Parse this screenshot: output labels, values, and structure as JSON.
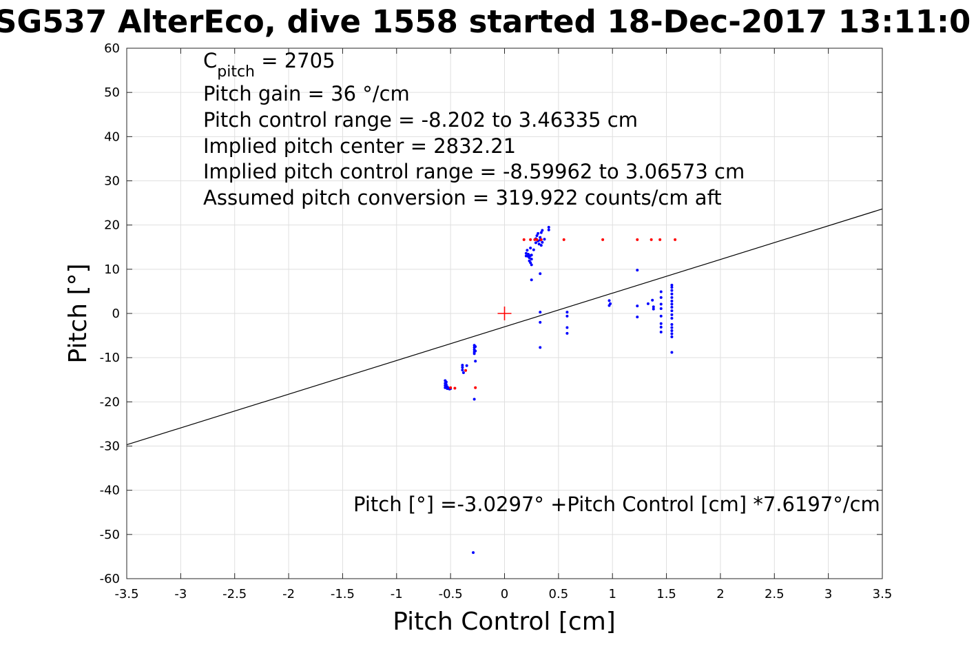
{
  "chart_data": {
    "type": "scatter",
    "title": "SG537 AlterEco, dive 1558 started 18-Dec-2017 13:11:0",
    "xlabel": "Pitch Control [cm]",
    "ylabel": "Pitch [°]",
    "xlim": [
      -3.5,
      3.5
    ],
    "ylim": [
      -60,
      60
    ],
    "xticks": [
      -3.5,
      -3,
      -2.5,
      -2,
      -1.5,
      -1,
      -0.5,
      0,
      0.5,
      1,
      1.5,
      2,
      2.5,
      3,
      3.5
    ],
    "xtick_labels": [
      "-3.5",
      "-3",
      "-2.5",
      "-2",
      "-1.5",
      "-1",
      "-0.5",
      "0",
      "0.5",
      "1",
      "1.5",
      "2",
      "2.5",
      "3",
      "3.5"
    ],
    "yticks": [
      -60,
      -50,
      -40,
      -30,
      -20,
      -10,
      0,
      10,
      20,
      30,
      40,
      50,
      60
    ],
    "ytick_labels": [
      "-60",
      "-50",
      "-40",
      "-30",
      "-20",
      "-10",
      "0",
      "10",
      "20",
      "30",
      "40",
      "50",
      "60"
    ],
    "grid": true,
    "annotations": {
      "c_pitch_main": "C",
      "c_pitch_sub": "pitch",
      "c_pitch_value": " = 2705",
      "pitch_gain": "Pitch gain = 36 °/cm",
      "control_range": "Pitch control range = -8.202 to 3.46335 cm",
      "implied_center": "Implied pitch center = 2832.21",
      "implied_range": "Implied pitch control range = -8.59962 to 3.06573 cm",
      "conversion": "Assumed pitch conversion = 319.922 counts/cm aft",
      "fit_equation": "Pitch [°] =-3.0297° +Pitch Control [cm] *7.6197°/cm"
    },
    "fit_line": {
      "intercept": -3.0297,
      "slope": 7.6197,
      "color": "#000000"
    },
    "center_marker": {
      "x": 0,
      "y": 0,
      "color": "#ff0000"
    },
    "series": [
      {
        "color": "#0000ff",
        "points": [
          [
            -0.55,
            -15.2
          ],
          [
            -0.55,
            -15.8
          ],
          [
            -0.55,
            -16.3
          ],
          [
            -0.55,
            -16.8
          ],
          [
            -0.54,
            -15.5
          ],
          [
            -0.54,
            -16.1
          ],
          [
            -0.53,
            -16.6
          ],
          [
            -0.53,
            -17.0
          ],
          [
            -0.52,
            -16.9
          ],
          [
            -0.51,
            -17.1
          ],
          [
            -0.5,
            -17.0
          ],
          [
            -0.39,
            -11.7
          ],
          [
            -0.39,
            -12.2
          ],
          [
            -0.39,
            -12.8
          ],
          [
            -0.38,
            -13.4
          ],
          [
            -0.35,
            -11.8
          ],
          [
            -0.28,
            -7.2
          ],
          [
            -0.28,
            -7.7
          ],
          [
            -0.28,
            -8.2
          ],
          [
            -0.28,
            -8.7
          ],
          [
            -0.28,
            -9.1
          ],
          [
            -0.27,
            -7.5
          ],
          [
            -0.27,
            -8.5
          ],
          [
            -0.27,
            -10.8
          ],
          [
            -0.28,
            -19.4
          ],
          [
            0.2,
            13.0
          ],
          [
            0.2,
            13.6
          ],
          [
            0.21,
            14.3
          ],
          [
            0.22,
            12.9
          ],
          [
            0.22,
            13.4
          ],
          [
            0.23,
            11.9
          ],
          [
            0.23,
            12.6
          ],
          [
            0.24,
            13.1
          ],
          [
            0.24,
            11.5
          ],
          [
            0.25,
            12.3
          ],
          [
            0.25,
            11.0
          ],
          [
            0.25,
            13.2
          ],
          [
            0.24,
            14.8
          ],
          [
            0.27,
            14.4
          ],
          [
            0.25,
            7.6
          ],
          [
            0.29,
            16.0
          ],
          [
            0.29,
            16.9
          ],
          [
            0.3,
            17.6
          ],
          [
            0.31,
            18.1
          ],
          [
            0.31,
            16.4
          ],
          [
            0.32,
            15.7
          ],
          [
            0.33,
            16.6
          ],
          [
            0.33,
            17.2
          ],
          [
            0.34,
            18.3
          ],
          [
            0.34,
            15.4
          ],
          [
            0.35,
            16.1
          ],
          [
            0.35,
            18.8
          ],
          [
            0.37,
            16.8
          ],
          [
            0.41,
            18.9
          ],
          [
            0.41,
            19.5
          ],
          [
            0.33,
            9.0
          ],
          [
            0.33,
            0.3
          ],
          [
            0.33,
            -2.0
          ],
          [
            0.33,
            -7.7
          ],
          [
            0.58,
            0.3
          ],
          [
            0.58,
            -0.6
          ],
          [
            0.58,
            -3.2
          ],
          [
            0.58,
            -4.5
          ],
          [
            0.97,
            2.9
          ],
          [
            0.98,
            2.2
          ],
          [
            0.97,
            1.8
          ],
          [
            1.23,
            9.8
          ],
          [
            1.23,
            1.7
          ],
          [
            1.23,
            -0.8
          ],
          [
            1.33,
            2.2
          ],
          [
            1.37,
            3.0
          ],
          [
            1.38,
            1.5
          ],
          [
            1.38,
            1.0
          ],
          [
            1.45,
            4.9
          ],
          [
            1.45,
            3.6
          ],
          [
            1.45,
            2.1
          ],
          [
            1.45,
            1.1
          ],
          [
            1.45,
            -0.6
          ],
          [
            1.45,
            -2.3
          ],
          [
            1.45,
            -3.1
          ],
          [
            1.45,
            -4.2
          ],
          [
            1.55,
            6.4
          ],
          [
            1.55,
            5.9
          ],
          [
            1.55,
            5.2
          ],
          [
            1.55,
            4.4
          ],
          [
            1.55,
            3.6
          ],
          [
            1.55,
            2.8
          ],
          [
            1.55,
            2.1
          ],
          [
            1.55,
            1.4
          ],
          [
            1.55,
            0.6
          ],
          [
            1.55,
            -0.3
          ],
          [
            1.55,
            -1.1
          ],
          [
            1.55,
            -2.5
          ],
          [
            1.55,
            -3.2
          ],
          [
            1.55,
            -3.9
          ],
          [
            1.55,
            -4.6
          ],
          [
            1.55,
            -5.3
          ],
          [
            1.55,
            -8.8
          ],
          [
            -0.29,
            -54.1
          ]
        ]
      },
      {
        "color": "#ff0000",
        "points": [
          [
            -0.5,
            -16.8
          ],
          [
            -0.46,
            -16.9
          ],
          [
            -0.36,
            -12.9
          ],
          [
            -0.27,
            -16.8
          ],
          [
            0.18,
            16.7
          ],
          [
            0.24,
            16.7
          ],
          [
            0.28,
            16.7
          ],
          [
            0.3,
            16.7
          ],
          [
            0.34,
            16.7
          ],
          [
            0.55,
            16.7
          ],
          [
            0.91,
            16.7
          ],
          [
            1.23,
            16.7
          ],
          [
            1.36,
            16.7
          ],
          [
            1.44,
            16.7
          ],
          [
            1.58,
            16.7
          ]
        ]
      }
    ]
  }
}
